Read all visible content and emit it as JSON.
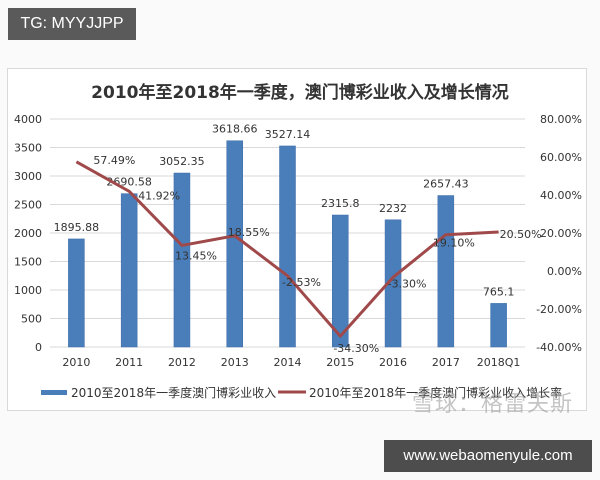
{
  "tag_label": "TG: MYYJJPP",
  "footer_url": "www.webaomenyule.com",
  "watermark": "雪球：格雷夫斯",
  "colors": {
    "bar": "#4a7ebb",
    "line": "#a0494a",
    "grid": "#d9d9d9",
    "text": "#333333"
  },
  "chart_data": {
    "type": "bar+line",
    "title": "2010年至2018年一季度，澳门博彩业收入及增长情况",
    "categories": [
      "2010",
      "2011",
      "2012",
      "2013",
      "2014",
      "2015",
      "2016",
      "2017",
      "2018Q1"
    ],
    "series": [
      {
        "name": "2010至2018年一季度澳门博彩业收入",
        "type": "bar",
        "axis": "left",
        "values": [
          1895.88,
          2690.58,
          3052.35,
          3618.66,
          3527.14,
          2315.8,
          2232,
          2657.43,
          765.1
        ],
        "labels": [
          "1895.88",
          "2690.58",
          "3052.35",
          "3618.66",
          "3527.14",
          "2315.8",
          "2232",
          "2657.43",
          "765.1"
        ]
      },
      {
        "name": "2010年至2018年一季度澳门博彩业收入增长率",
        "type": "line",
        "axis": "right",
        "values": [
          57.49,
          41.92,
          13.45,
          18.55,
          -2.53,
          -34.3,
          -3.3,
          19.1,
          20.5
        ],
        "labels": [
          "57.49%",
          "41.92%",
          "13.45%",
          "18.55%",
          "-2.53%",
          "-34.30%",
          "-3.30%",
          "19.10%",
          "20.50%"
        ]
      }
    ],
    "left_axis": {
      "ylim": [
        0,
        4000
      ],
      "ticks": [
        "0",
        "500",
        "1000",
        "1500",
        "2000",
        "2500",
        "3000",
        "3500",
        "4000"
      ]
    },
    "right_axis": {
      "ylim": [
        -40,
        80
      ],
      "ticks": [
        "-40.00%",
        "-20.00%",
        "0.00%",
        "20.00%",
        "40.00%",
        "60.00%",
        "80.00%"
      ]
    },
    "grid": true,
    "legend_position": "bottom"
  }
}
